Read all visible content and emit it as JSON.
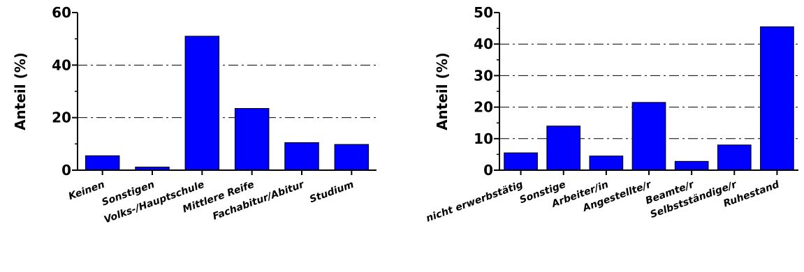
{
  "chart_data": [
    {
      "type": "bar",
      "title": "",
      "xlabel": "",
      "ylabel": "Anteil (%)",
      "ylim": [
        0,
        60
      ],
      "yticks": [
        0,
        20,
        40,
        60
      ],
      "grid": "horizontal dash-dot at major ticks",
      "bar_color": "#0000ff",
      "categories": [
        "Keinen",
        "Sonstigen",
        "Volks-/Hauptschule",
        "Mittlere Reife",
        "Fachabitur/Abitur",
        "Studium"
      ],
      "values": [
        5.5,
        1.2,
        51,
        23.5,
        10.5,
        9.8
      ]
    },
    {
      "type": "bar",
      "title": "",
      "xlabel": "",
      "ylabel": "Anteil (%)",
      "ylim": [
        0,
        50
      ],
      "yticks": [
        0,
        10,
        20,
        30,
        40,
        50
      ],
      "grid": "horizontal dash-dot at major ticks",
      "bar_color": "#0000ff",
      "categories": [
        "nicht erwerbstätig",
        "Sonstige",
        "Arbeiter/in",
        "Angestellte/r",
        "Beamte/r",
        "Selbstständige/r",
        "Ruhestand"
      ],
      "values": [
        5.5,
        14,
        4.5,
        21.5,
        2.8,
        8,
        45.5
      ]
    }
  ]
}
